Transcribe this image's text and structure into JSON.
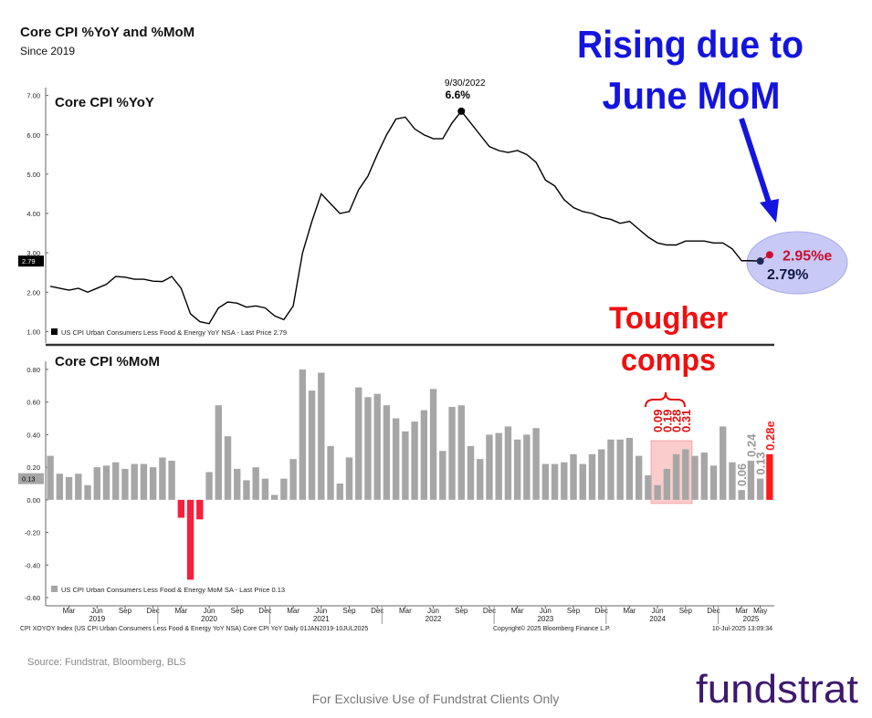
{
  "header": {
    "title": "Core CPI %YoY and %MoM",
    "subtitle": "Since 2019"
  },
  "chart_data": [
    {
      "type": "line",
      "title": "Core CPI %YoY",
      "ylim": [
        0.8,
        7.2
      ],
      "yticks": [
        {
          "value": 1,
          "label": "1.00"
        },
        {
          "value": 2,
          "label": "2.00"
        },
        {
          "value": 3,
          "label": "3.00"
        },
        {
          "value": 4,
          "label": "4.00"
        },
        {
          "value": 5,
          "label": "5.00"
        },
        {
          "value": 6,
          "label": "6.00"
        },
        {
          "value": 7,
          "label": "7.00"
        }
      ],
      "series": [
        {
          "name": "US CPI Urban Consumers Less Food & Energy YoY NSA - Last Price 2.79",
          "color": "#000000",
          "values": [
            2.15,
            2.1,
            2.05,
            2.1,
            2.0,
            2.1,
            2.2,
            2.4,
            2.38,
            2.33,
            2.33,
            2.28,
            2.27,
            2.4,
            2.1,
            1.45,
            1.25,
            1.2,
            1.6,
            1.75,
            1.72,
            1.62,
            1.65,
            1.6,
            1.4,
            1.3,
            1.65,
            3.0,
            3.8,
            4.5,
            4.25,
            4.0,
            4.05,
            4.6,
            4.95,
            5.5,
            6.0,
            6.4,
            6.45,
            6.15,
            6.0,
            5.9,
            5.9,
            6.3,
            6.6,
            6.3,
            6.0,
            5.7,
            5.6,
            5.55,
            5.6,
            5.5,
            5.3,
            4.85,
            4.7,
            4.35,
            4.15,
            4.05,
            4.0,
            3.9,
            3.85,
            3.75,
            3.8,
            3.6,
            3.4,
            3.25,
            3.2,
            3.2,
            3.3,
            3.3,
            3.3,
            3.25,
            3.25,
            3.1,
            2.8,
            2.8,
            2.79
          ],
          "value_labels": [
            null,
            null,
            null,
            null,
            null,
            null,
            null,
            null,
            null,
            null,
            null,
            null,
            null,
            null,
            null,
            null,
            null,
            null,
            null,
            null,
            null,
            null,
            null,
            null,
            null,
            null,
            null,
            null,
            null,
            null,
            null,
            null,
            null,
            null,
            null,
            null,
            null,
            null,
            null,
            null,
            null,
            null,
            null,
            null,
            "6.6%",
            null,
            null,
            null,
            null,
            null,
            null,
            null,
            null,
            null,
            null,
            null,
            null,
            null,
            null,
            null,
            null,
            null,
            null,
            null,
            null,
            null,
            null,
            null,
            null,
            null,
            null,
            null,
            null,
            null,
            null,
            null,
            "2.79%"
          ]
        }
      ],
      "peak_date": "9/30/2022",
      "last_price_tag": 2.79,
      "estimate": {
        "value": 2.95,
        "label": "2.95%e",
        "color": "#c8102e"
      }
    },
    {
      "type": "bar",
      "title": "Core CPI %MoM",
      "ylim": [
        -0.65,
        0.85
      ],
      "yticks": [
        {
          "value": -0.6,
          "label": "-0.60"
        },
        {
          "value": -0.4,
          "label": "-0.40"
        },
        {
          "value": -0.2,
          "label": "-0.20"
        },
        {
          "value": 0,
          "label": "0.00"
        },
        {
          "value": 0.2,
          "label": "0.20"
        },
        {
          "value": 0.4,
          "label": "0.40"
        },
        {
          "value": 0.6,
          "label": "0.60"
        },
        {
          "value": 0.8,
          "label": "0.80"
        }
      ],
      "categories": [
        null,
        null,
        "Mar",
        null,
        null,
        "Jun",
        null,
        null,
        "Sep",
        null,
        null,
        "Dec",
        null,
        null,
        "Mar",
        null,
        null,
        "Jun",
        null,
        null,
        "Sep",
        null,
        null,
        "Dec",
        null,
        null,
        "Mar",
        null,
        null,
        "Jun",
        null,
        null,
        "Sep",
        null,
        null,
        "Dec",
        null,
        null,
        "Mar",
        null,
        null,
        "Jun",
        null,
        null,
        "Sep",
        null,
        null,
        "Dec",
        null,
        null,
        "Mar",
        null,
        null,
        "Jun",
        null,
        null,
        "Sep",
        null,
        null,
        "Dec",
        null,
        null,
        "Mar",
        null,
        null,
        "Jun",
        null,
        null,
        "Sep",
        null,
        null,
        "Dec",
        null,
        null,
        "Mar",
        null,
        "May"
      ],
      "years": [
        "2019",
        "2020",
        "2021",
        "2022",
        "2023",
        "2024",
        "2025"
      ],
      "series": [
        {
          "name": "US CPI Urban Consumers Less Food & Energy MoM SA - Last Price 0.13",
          "color": "#a6a6a6",
          "negative_color": "#f5203e",
          "values": [
            0.27,
            0.16,
            0.14,
            0.16,
            0.09,
            0.2,
            0.21,
            0.23,
            0.19,
            0.22,
            0.22,
            0.2,
            0.26,
            0.24,
            -0.11,
            -0.49,
            -0.12,
            0.17,
            0.58,
            0.39,
            0.19,
            0.12,
            0.2,
            0.13,
            0.03,
            0.13,
            0.25,
            0.8,
            0.67,
            0.78,
            0.33,
            0.1,
            0.26,
            0.69,
            0.63,
            0.65,
            0.58,
            0.5,
            0.42,
            0.48,
            0.55,
            0.68,
            0.3,
            0.57,
            0.58,
            0.33,
            0.25,
            0.4,
            0.41,
            0.45,
            0.37,
            0.4,
            0.44,
            0.22,
            0.22,
            0.23,
            0.28,
            0.22,
            0.28,
            0.31,
            0.37,
            0.37,
            0.38,
            0.27,
            0.15,
            0.09,
            0.19,
            0.28,
            0.31,
            0.27,
            0.29,
            0.21,
            0.45,
            0.23,
            0.06,
            0.24,
            0.13
          ],
          "value_labels": [
            null,
            null,
            null,
            null,
            null,
            null,
            null,
            null,
            null,
            null,
            null,
            null,
            null,
            null,
            null,
            null,
            null,
            null,
            null,
            null,
            null,
            null,
            null,
            null,
            null,
            null,
            null,
            null,
            null,
            null,
            null,
            null,
            null,
            null,
            null,
            null,
            null,
            null,
            null,
            null,
            null,
            null,
            null,
            null,
            null,
            null,
            null,
            null,
            null,
            null,
            null,
            null,
            null,
            null,
            null,
            null,
            null,
            null,
            null,
            null,
            null,
            null,
            null,
            null,
            null,
            "0.09",
            "0.19",
            "0.28",
            "0.31",
            null,
            null,
            null,
            null,
            null,
            "0.06",
            "0.24",
            "0.13"
          ]
        }
      ],
      "last_price_tag": 0.13,
      "estimate": {
        "value": 0.28,
        "label": "0.28e",
        "color": "#ff1a1a"
      }
    }
  ],
  "annotations": {
    "rising": [
      "Rising due to",
      "June MoM"
    ],
    "tougher": [
      "Tougher",
      "comps"
    ]
  },
  "footer": {
    "index_note": "CPI XOYOY Index (US CPI Urban Consumers Less Food & Energy YoY NSA) Core CPI YoY  Daily 01JAN2019-10JUL2025",
    "copyright": "Copyright© 2025 Bloomberg Finance L.P.",
    "timestamp": "10-Jul-2025 13:09:34",
    "source": "Source: Fundstrat, Bloomberg, BLS",
    "disclaimer": "For Exclusive Use of Fundstrat Clients Only",
    "logo": "fundstrat"
  }
}
